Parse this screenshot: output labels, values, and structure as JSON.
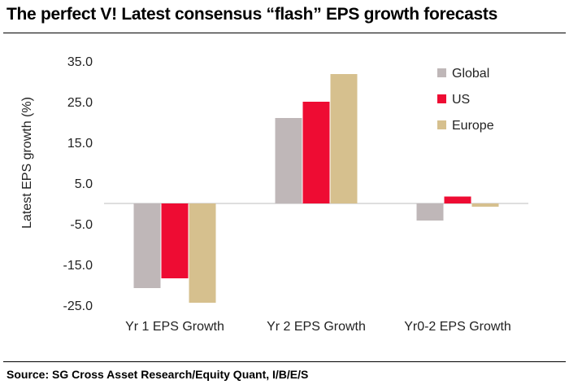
{
  "header": {
    "title": "The perfect V! Latest consensus “flash” EPS growth forecasts"
  },
  "footer": {
    "source": "Source: SG Cross Asset Research/Equity Quant, I/B/E/S"
  },
  "colors": {
    "Global": "#bfb7b8",
    "US": "#ee0c33",
    "Europe": "#d6c08e",
    "axis": "#d4d4d4"
  },
  "chart_data": {
    "type": "bar",
    "title": "",
    "xlabel": "",
    "ylabel": "Latest EPS growth  (%)",
    "categories": [
      "Yr 1 EPS Growth",
      "Yr 2 EPS Growth",
      "Yr0-2 EPS Growth"
    ],
    "series": [
      {
        "name": "Global",
        "values": [
          -20.8,
          21.0,
          -4.2
        ]
      },
      {
        "name": "US",
        "values": [
          -18.4,
          25.0,
          1.7
        ]
      },
      {
        "name": "Europe",
        "values": [
          -24.4,
          31.8,
          -0.8
        ]
      }
    ],
    "ylim": [
      -25,
      35
    ],
    "yticks": [
      "35.0",
      "25.0",
      "15.0",
      "5.0",
      "-5.0",
      "-15.0",
      "-25.0"
    ],
    "ytick_values": [
      35,
      25,
      15,
      5,
      -5,
      -15,
      -25
    ],
    "grid": false,
    "legend": "top-right"
  }
}
